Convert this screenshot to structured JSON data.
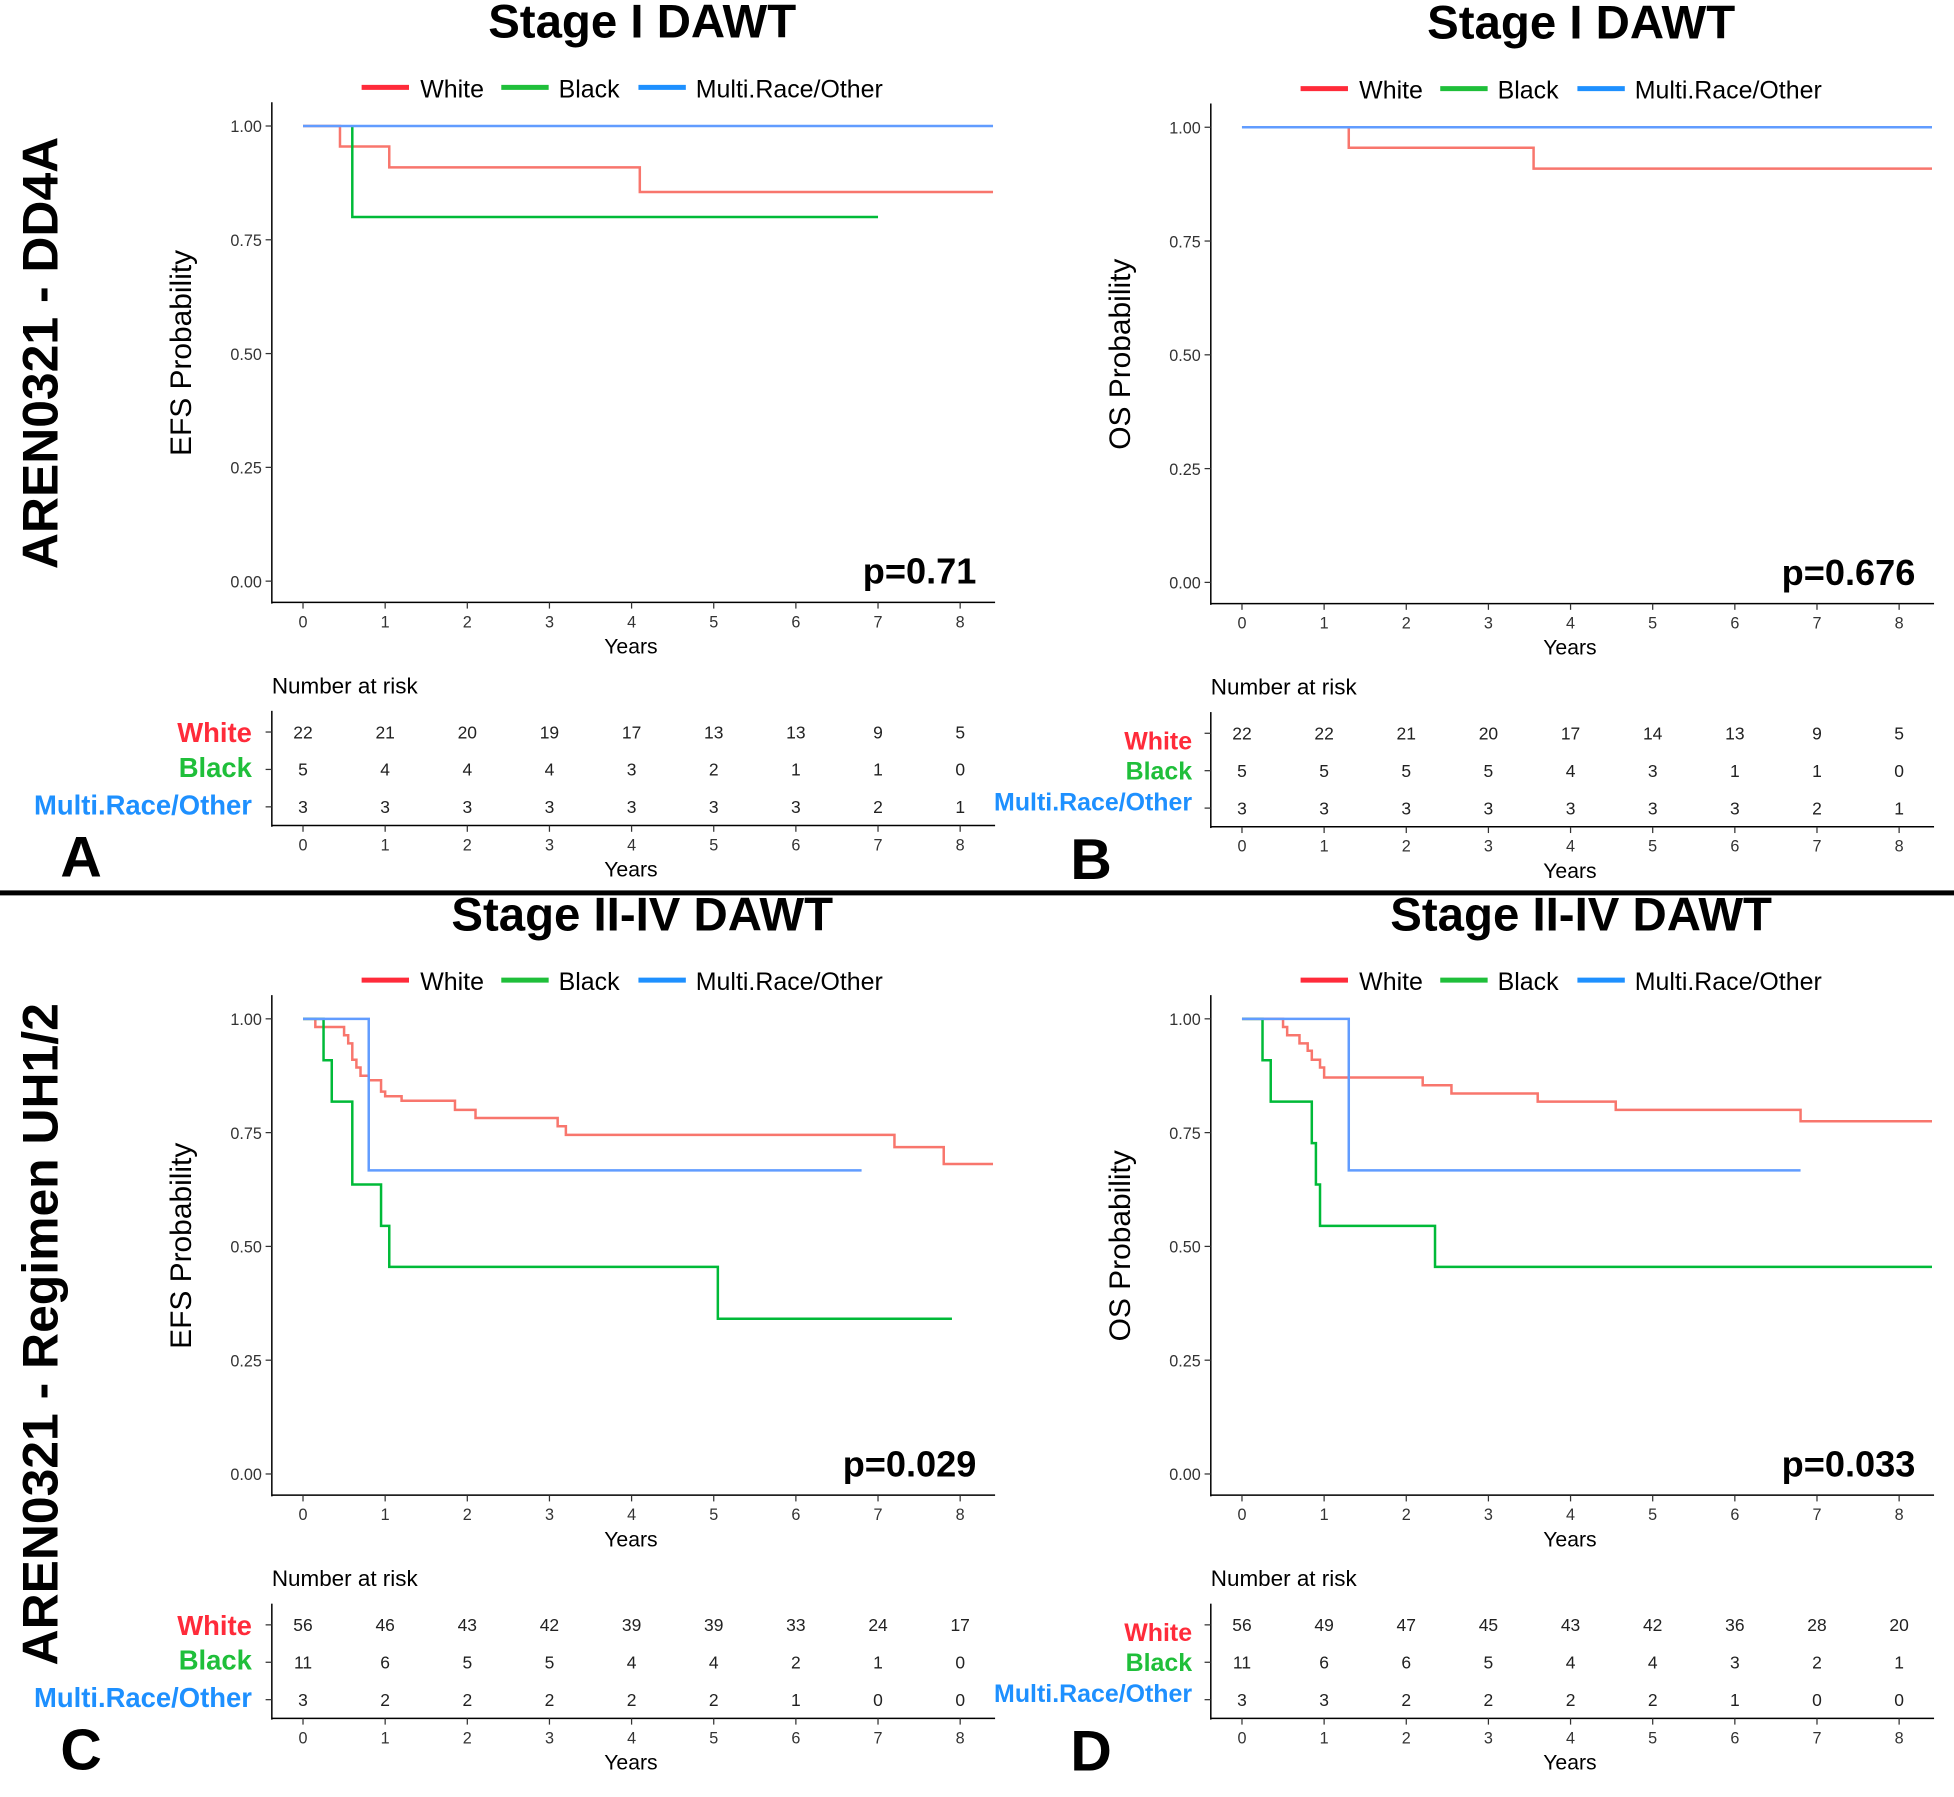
{
  "side_labels": [
    "AREN0321 - DD4A",
    "AREN0321 - Regimen UH1/2"
  ],
  "colors": {
    "White": "#F8766D",
    "Black": "#00BA38",
    "Multi.Race/Other": "#619CFF",
    "legend_White": "#FF2B3A",
    "legend_Black": "#1FBF3A",
    "legend_Multi.Race/Other": "#1E90FF"
  },
  "chart_data": [
    {
      "type": "line",
      "panel_letter": "A",
      "title": "Stage I DAWT",
      "xlabel": "Years",
      "ylabel": "EFS Probability",
      "p_value": "p=0.71",
      "xlim": [
        0,
        8
      ],
      "ylim": [
        0,
        1
      ],
      "x_ticks": [
        "0",
        "1",
        "2",
        "3",
        "4",
        "5",
        "6",
        "7",
        "8"
      ],
      "y_ticks": [
        "0.00",
        "0.25",
        "0.50",
        "0.75",
        "1.00"
      ],
      "legend": [
        "White",
        "Black",
        "Multi.Race/Other"
      ],
      "legend_position": "top",
      "series": [
        {
          "name": "White",
          "steps": [
            [
              0,
              1
            ],
            [
              0.45,
              0.955
            ],
            [
              1.05,
              0.909
            ],
            [
              4.1,
              0.855
            ]
          ],
          "end": 8.4
        },
        {
          "name": "Black",
          "steps": [
            [
              0.6,
              1
            ],
            [
              0.6,
              0.8
            ]
          ],
          "end": 7.0
        },
        {
          "name": "Multi.Race/Other",
          "steps": [
            [
              0,
              1
            ]
          ],
          "end": 8.4
        }
      ],
      "risk_table": {
        "title": "Number at risk",
        "xlabel": "Years",
        "rows": [
          {
            "name": "White",
            "values": [
              22,
              21,
              20,
              19,
              17,
              13,
              13,
              9,
              5
            ]
          },
          {
            "name": "Black",
            "values": [
              5,
              4,
              4,
              4,
              3,
              2,
              1,
              1,
              0
            ]
          },
          {
            "name": "Multi.Race/Other",
            "values": [
              3,
              3,
              3,
              3,
              3,
              3,
              3,
              2,
              1
            ]
          }
        ]
      }
    },
    {
      "type": "line",
      "panel_letter": "B",
      "title": "Stage I DAWT",
      "xlabel": "Years",
      "ylabel": "OS Probability",
      "p_value": "p=0.676",
      "xlim": [
        0,
        8
      ],
      "ylim": [
        0,
        1
      ],
      "x_ticks": [
        "0",
        "1",
        "2",
        "3",
        "4",
        "5",
        "6",
        "7",
        "8"
      ],
      "y_ticks": [
        "0.00",
        "0.25",
        "0.50",
        "0.75",
        "1.00"
      ],
      "legend": [
        "White",
        "Black",
        "Multi.Race/Other"
      ],
      "legend_position": "top",
      "series": [
        {
          "name": "White",
          "steps": [
            [
              0,
              1
            ],
            [
              1.3,
              0.955
            ],
            [
              3.55,
              0.909
            ]
          ],
          "end": 8.4
        },
        {
          "name": "Black",
          "steps": [
            [
              0,
              1
            ]
          ],
          "end": 7.0
        },
        {
          "name": "Multi.Race/Other",
          "steps": [
            [
              0,
              1
            ]
          ],
          "end": 8.4
        }
      ],
      "risk_table": {
        "title": "Number at risk",
        "xlabel": "Years",
        "rows": [
          {
            "name": "White",
            "values": [
              22,
              22,
              21,
              20,
              17,
              14,
              13,
              9,
              5
            ]
          },
          {
            "name": "Black",
            "values": [
              5,
              5,
              5,
              5,
              4,
              3,
              1,
              1,
              0
            ]
          },
          {
            "name": "Multi.Race/Other",
            "values": [
              3,
              3,
              3,
              3,
              3,
              3,
              3,
              2,
              1
            ]
          }
        ]
      }
    },
    {
      "type": "line",
      "panel_letter": "C",
      "title": "Stage II-IV DAWT",
      "xlabel": "Years",
      "ylabel": "EFS Probability",
      "p_value": "p=0.029",
      "xlim": [
        0,
        8
      ],
      "ylim": [
        0,
        1
      ],
      "x_ticks": [
        "0",
        "1",
        "2",
        "3",
        "4",
        "5",
        "6",
        "7",
        "8"
      ],
      "y_ticks": [
        "0.00",
        "0.25",
        "0.50",
        "0.75",
        "1.00"
      ],
      "legend": [
        "White",
        "Black",
        "Multi.Race/Other"
      ],
      "legend_position": "top",
      "series": [
        {
          "name": "White",
          "steps": [
            [
              0,
              1
            ],
            [
              0.15,
              0.982
            ],
            [
              0.5,
              0.964
            ],
            [
              0.55,
              0.946
            ],
            [
              0.6,
              0.91
            ],
            [
              0.65,
              0.893
            ],
            [
              0.7,
              0.875
            ],
            [
              0.8,
              0.865
            ],
            [
              0.95,
              0.84
            ],
            [
              1.0,
              0.83
            ],
            [
              1.2,
              0.82
            ],
            [
              1.85,
              0.8
            ],
            [
              2.1,
              0.782
            ],
            [
              3.1,
              0.764
            ],
            [
              3.2,
              0.745
            ],
            [
              7.2,
              0.718
            ],
            [
              7.8,
              0.681
            ]
          ],
          "end": 8.4
        },
        {
          "name": "Black",
          "steps": [
            [
              0,
              1
            ],
            [
              0.25,
              0.909
            ],
            [
              0.35,
              0.818
            ],
            [
              0.6,
              0.636
            ],
            [
              0.95,
              0.545
            ],
            [
              1.05,
              0.455
            ],
            [
              5.05,
              0.341
            ]
          ],
          "end": 7.9
        },
        {
          "name": "Multi.Race/Other",
          "steps": [
            [
              0,
              1
            ],
            [
              0.8,
              0.667
            ]
          ],
          "end": 6.8
        }
      ],
      "risk_table": {
        "title": "Number at risk",
        "xlabel": "Years",
        "rows": [
          {
            "name": "White",
            "values": [
              56,
              46,
              43,
              42,
              39,
              39,
              33,
              24,
              17
            ]
          },
          {
            "name": "Black",
            "values": [
              11,
              6,
              5,
              5,
              4,
              4,
              2,
              1,
              0
            ]
          },
          {
            "name": "Multi.Race/Other",
            "values": [
              3,
              2,
              2,
              2,
              2,
              2,
              1,
              0,
              0
            ]
          }
        ]
      }
    },
    {
      "type": "line",
      "panel_letter": "D",
      "title": "Stage II-IV DAWT",
      "xlabel": "Years",
      "ylabel": "OS Probability",
      "p_value": "p=0.033",
      "xlim": [
        0,
        8
      ],
      "ylim": [
        0,
        1
      ],
      "x_ticks": [
        "0",
        "1",
        "2",
        "3",
        "4",
        "5",
        "6",
        "7",
        "8"
      ],
      "y_ticks": [
        "0.00",
        "0.25",
        "0.50",
        "0.75",
        "1.00"
      ],
      "legend": [
        "White",
        "Black",
        "Multi.Race/Other"
      ],
      "legend_position": "top",
      "series": [
        {
          "name": "White",
          "steps": [
            [
              0,
              1
            ],
            [
              0.5,
              0.982
            ],
            [
              0.55,
              0.964
            ],
            [
              0.7,
              0.946
            ],
            [
              0.8,
              0.93
            ],
            [
              0.85,
              0.91
            ],
            [
              0.95,
              0.893
            ],
            [
              1.0,
              0.871
            ],
            [
              2.2,
              0.854
            ],
            [
              2.55,
              0.836
            ],
            [
              3.6,
              0.818
            ],
            [
              4.55,
              0.8
            ],
            [
              6.8,
              0.775
            ]
          ],
          "end": 8.4
        },
        {
          "name": "Black",
          "steps": [
            [
              0,
              1
            ],
            [
              0.25,
              0.909
            ],
            [
              0.35,
              0.818
            ],
            [
              0.85,
              0.727
            ],
            [
              0.9,
              0.636
            ],
            [
              0.95,
              0.545
            ],
            [
              2.35,
              0.455
            ]
          ],
          "end": 8.4
        },
        {
          "name": "Multi.Race/Other",
          "steps": [
            [
              0,
              1
            ],
            [
              1.3,
              0.667
            ]
          ],
          "end": 6.8
        }
      ],
      "risk_table": {
        "title": "Number at risk",
        "xlabel": "Years",
        "rows": [
          {
            "name": "White",
            "values": [
              56,
              49,
              47,
              45,
              43,
              42,
              36,
              28,
              20
            ]
          },
          {
            "name": "Black",
            "values": [
              11,
              6,
              6,
              5,
              4,
              4,
              3,
              2,
              1
            ]
          },
          {
            "name": "Multi.Race/Other",
            "values": [
              3,
              3,
              2,
              2,
              2,
              2,
              1,
              0,
              0
            ]
          }
        ]
      }
    }
  ]
}
